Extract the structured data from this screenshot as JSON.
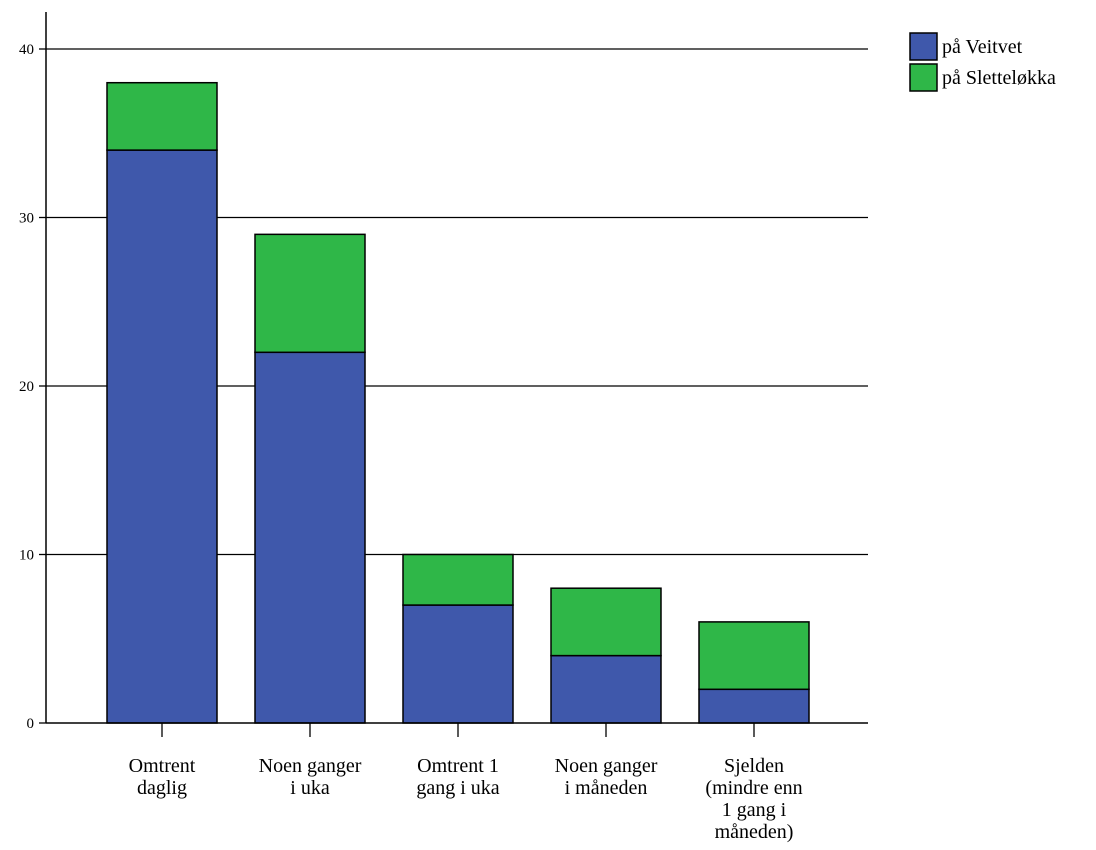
{
  "chart_data": {
    "type": "bar",
    "stacked": true,
    "categories": [
      [
        "Omtrent",
        "daglig"
      ],
      [
        "Noen ganger",
        "i uka"
      ],
      [
        "Omtrent 1",
        "gang i uka"
      ],
      [
        "Noen ganger",
        "i måneden"
      ],
      [
        "Sjelden",
        "(mindre enn",
        "1 gang i",
        "måneden)"
      ]
    ],
    "series": [
      {
        "name": "på Veitvet",
        "color": "#3f58ab",
        "values": [
          34,
          22,
          7,
          4,
          2
        ]
      },
      {
        "name": "på Sletteløkka",
        "color": "#2fb748",
        "values": [
          4,
          7,
          3,
          4,
          4
        ]
      }
    ],
    "ylim": [
      0,
      40
    ],
    "yticks": [
      0,
      10,
      20,
      30,
      40
    ],
    "grid": true,
    "legend": "top-right",
    "title": "",
    "xlabel": "",
    "ylabel": ""
  }
}
